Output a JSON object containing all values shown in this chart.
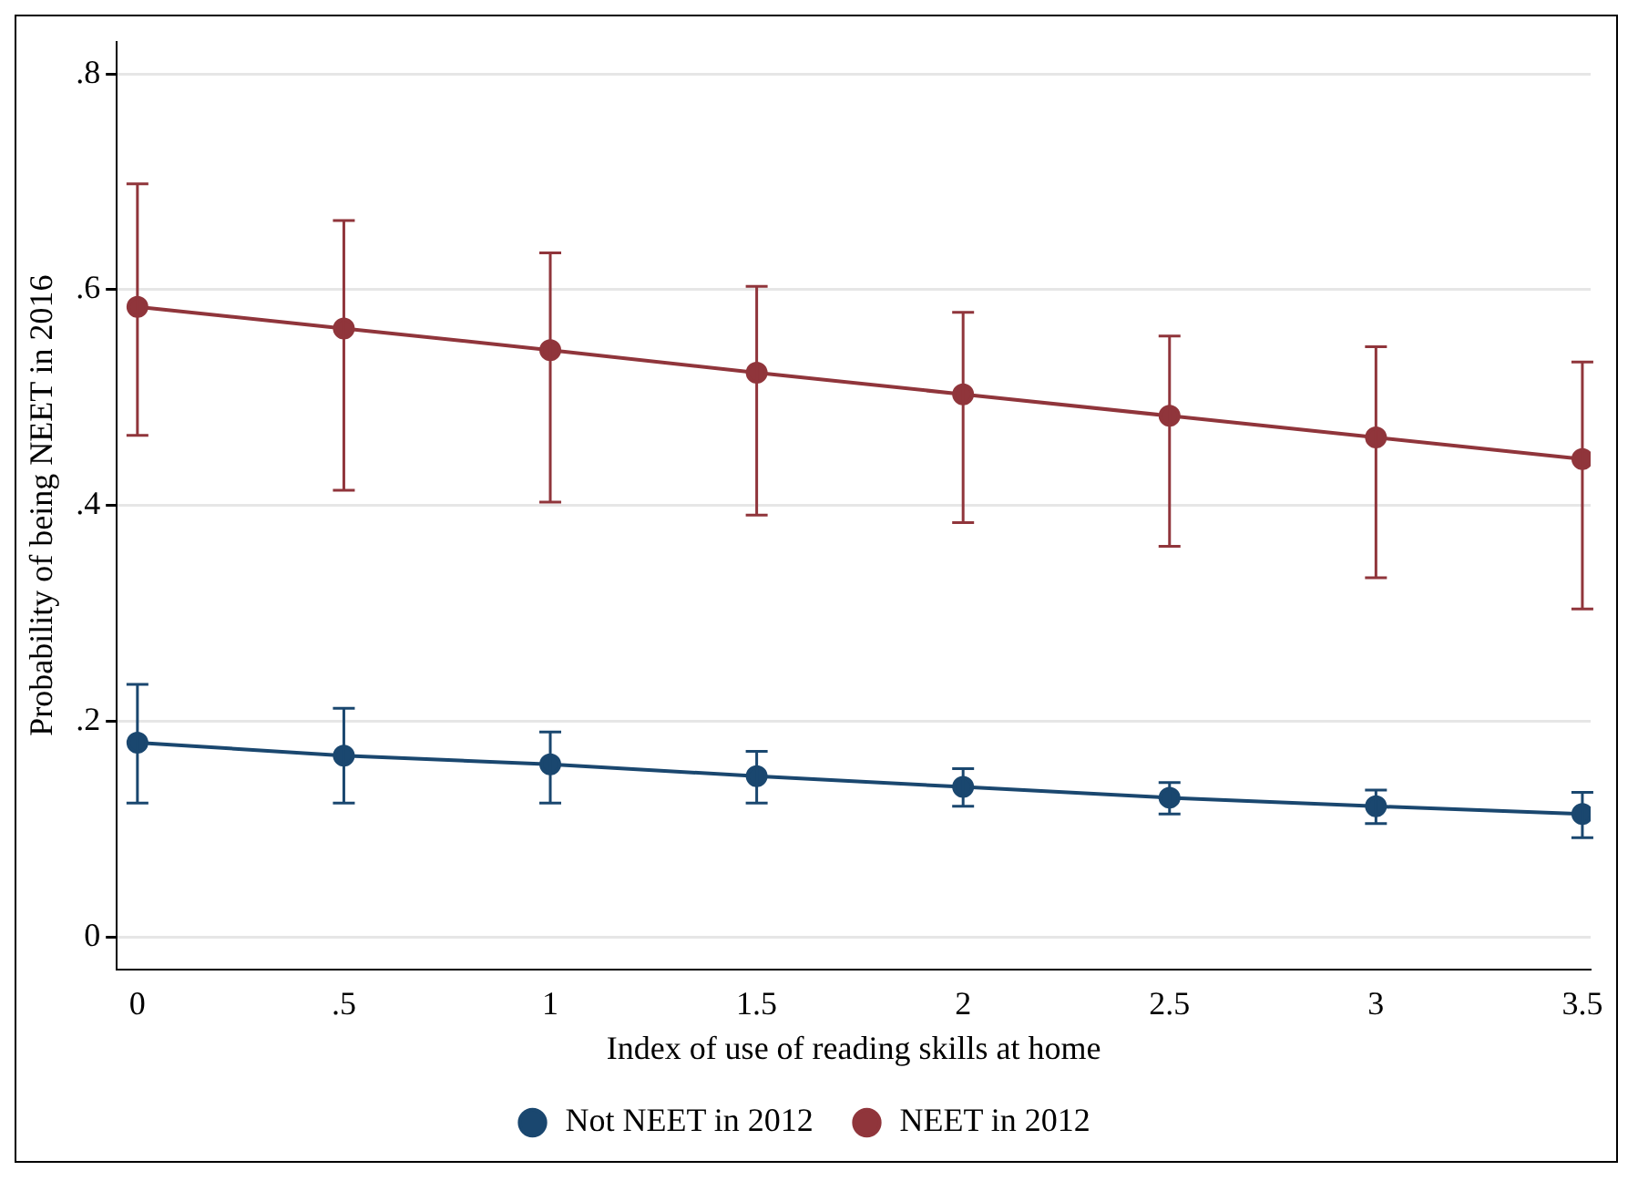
{
  "chart_data": {
    "type": "line",
    "xlabel": "Index of use of reading skills at home",
    "ylabel": "Probability of being NEET in 2016",
    "x": [
      0,
      0.5,
      1,
      1.5,
      2,
      2.5,
      3,
      3.5
    ],
    "series": [
      {
        "name": "Not NEET in 2012",
        "color": "#1a476f",
        "values": [
          0.18,
          0.168,
          0.16,
          0.149,
          0.139,
          0.129,
          0.121,
          0.114
        ],
        "errors": [
          [
            0.124,
            0.234
          ],
          [
            0.124,
            0.212
          ],
          [
            0.124,
            0.19
          ],
          [
            0.124,
            0.172
          ],
          [
            0.121,
            0.156
          ],
          [
            0.114,
            0.143
          ],
          [
            0.105,
            0.136
          ],
          [
            0.092,
            0.134
          ]
        ]
      },
      {
        "name": "NEET in 2012",
        "color": "#90353b",
        "values": [
          0.584,
          0.564,
          0.544,
          0.523,
          0.503,
          0.483,
          0.463,
          0.443
        ],
        "errors": [
          [
            0.465,
            0.698
          ],
          [
            0.414,
            0.664
          ],
          [
            0.403,
            0.634
          ],
          [
            0.391,
            0.603
          ],
          [
            0.384,
            0.579
          ],
          [
            0.362,
            0.557
          ],
          [
            0.333,
            0.547
          ],
          [
            0.304,
            0.533
          ]
        ]
      }
    ],
    "xlim": [
      -0.05,
      3.52
    ],
    "ylim": [
      -0.03,
      0.83
    ],
    "xticks": [
      0,
      {
        "value": 0.5,
        "label": ".5"
      },
      1,
      1.5,
      2,
      2.5,
      3,
      3.5
    ],
    "yticks": [
      {
        "value": 0,
        "label": "0"
      },
      {
        "value": 0.2,
        "label": ".2"
      },
      {
        "value": 0.4,
        "label": ".4"
      },
      {
        "value": 0.6,
        "label": ".6"
      },
      {
        "value": 0.8,
        "label": ".8"
      }
    ],
    "grid": "y",
    "legend": "bottom",
    "marker": "circle",
    "line_style": "solid"
  }
}
